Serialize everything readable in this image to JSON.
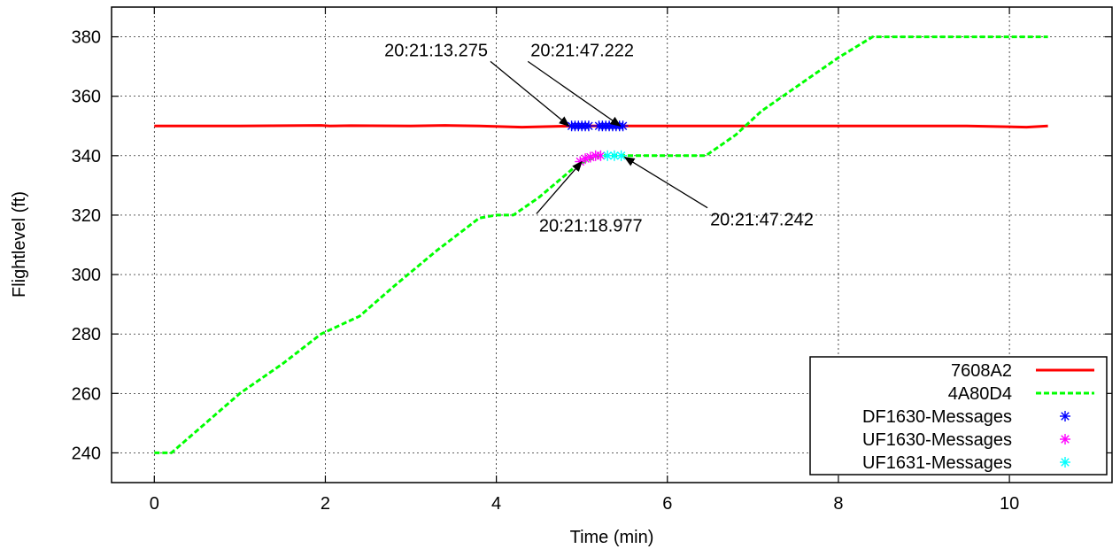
{
  "chart_data": {
    "type": "line",
    "title": "",
    "xlabel": "Time (min)",
    "ylabel": "Flightlevel (ft)",
    "xlim": [
      -0.5,
      11.2
    ],
    "ylim": [
      230,
      390
    ],
    "xticks": [
      0,
      2,
      4,
      6,
      8,
      10
    ],
    "xtick_labels": [
      "0",
      "2",
      "4",
      "6",
      "8",
      "10"
    ],
    "yticks": [
      240,
      260,
      280,
      300,
      320,
      340,
      360,
      380
    ],
    "ytick_labels": [
      "240",
      "260",
      "280",
      "300",
      "320",
      "340",
      "360",
      "380"
    ],
    "grid": true,
    "legend_position": "bottom-right",
    "series": [
      {
        "name": "7608A2",
        "kind": "line",
        "style": "solid",
        "color": "#ff0000",
        "x": [
          0,
          1,
          1.95,
          2.05,
          2.3,
          3,
          3.4,
          3.8,
          4.3,
          4.9,
          5.5,
          7,
          9.5,
          10.2,
          10.45
        ],
        "y": [
          350,
          350,
          350.2,
          350,
          350.1,
          350,
          350.2,
          350,
          349.6,
          350,
          350,
          350,
          350,
          349.6,
          350
        ]
      },
      {
        "name": "4A80D4",
        "kind": "line",
        "style": "dashed",
        "color": "#00ff00",
        "x": [
          0,
          0.2,
          0.6,
          1.0,
          1.5,
          1.95,
          2.1,
          2.4,
          2.8,
          3.3,
          3.8,
          4.0,
          4.2,
          4.5,
          4.95,
          5.2,
          5.5,
          6.0,
          6.45,
          6.8,
          7.1,
          7.6,
          8.0,
          8.4,
          9.0,
          10.0,
          10.45
        ],
        "y": [
          240,
          240,
          250,
          260,
          270,
          280,
          282,
          286,
          296,
          308,
          319,
          320,
          320,
          326,
          337,
          340,
          340,
          340,
          340,
          347,
          355,
          365,
          373,
          380,
          380,
          380,
          380
        ]
      },
      {
        "name": "DF1630-Messages",
        "kind": "scatter",
        "marker": "asterisk",
        "color": "#0000ff",
        "x": [
          4.88,
          4.92,
          4.96,
          5.0,
          5.04,
          5.08,
          5.2,
          5.24,
          5.28,
          5.32,
          5.36,
          5.4,
          5.44,
          5.48
        ],
        "y": [
          350,
          350,
          350,
          350,
          350,
          350,
          350,
          350,
          350,
          350,
          350,
          350,
          350,
          350
        ]
      },
      {
        "name": "UF1630-Messages",
        "kind": "scatter",
        "marker": "asterisk",
        "color": "#ff00ff",
        "x": [
          4.98,
          5.04,
          5.1,
          5.16,
          5.22
        ],
        "y": [
          338,
          339,
          339.5,
          340,
          340
        ]
      },
      {
        "name": "UF1631-Messages",
        "kind": "scatter",
        "marker": "asterisk",
        "color": "#00ffff",
        "x": [
          5.3,
          5.38,
          5.46
        ],
        "y": [
          340,
          340,
          340
        ]
      }
    ],
    "annotations": [
      {
        "text": "20:21:13.275",
        "x": 3.9,
        "y": 373.5,
        "anchor": "end",
        "arrow_to": [
          4.85,
          350
        ]
      },
      {
        "text": "20:21:47.222",
        "x": 4.4,
        "y": 373.5,
        "anchor": "start",
        "arrow_to": [
          5.45,
          350
        ]
      },
      {
        "text": "20:21:18.977",
        "x": 4.5,
        "y": 314.5,
        "anchor": "start",
        "arrow_to": [
          5.0,
          338
        ]
      },
      {
        "text": "20:21:47.242",
        "x": 6.5,
        "y": 316.5,
        "anchor": "start",
        "arrow_to": [
          5.5,
          339.5
        ]
      }
    ]
  }
}
